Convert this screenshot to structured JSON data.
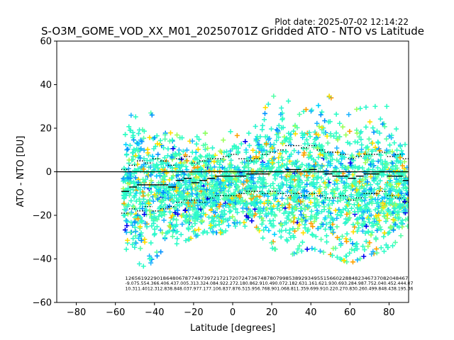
{
  "figure": {
    "plot_date": "Plot date: 2025-07-02 12:14:22"
  },
  "chart_data": {
    "type": "scatter",
    "title": "S-O3M_GOME_VOD_XX_M01_20250701Z Gridded ATO - NTO vs Latitude",
    "xlabel": "Latitude [degrees]",
    "ylabel": "ATO - NTO [DU]",
    "xlim": [
      -90,
      90
    ],
    "ylim": [
      -60,
      60
    ],
    "xticks": [
      -80,
      -60,
      -40,
      -20,
      0,
      20,
      40,
      60,
      80
    ],
    "yticks": [
      -60,
      -40,
      -20,
      0,
      20,
      40,
      60
    ],
    "grid": false,
    "reference_line_y": 0,
    "point_colors": [
      "#2efdc6",
      "#2ef5d0",
      "#54ffa8",
      "#0091ff",
      "#1fb4ff",
      "#9cff5a",
      "#ffdd00",
      "#fda000",
      "#0000ee",
      "#00d4ff",
      "#ffee00"
    ],
    "spread_envelope": [
      {
        "x": -55,
        "lo": -35,
        "hi": 22
      },
      {
        "x": -45,
        "lo": -45,
        "hi": 35
      },
      {
        "x": -35,
        "lo": -35,
        "hi": 22
      },
      {
        "x": -25,
        "lo": -32,
        "hi": 18
      },
      {
        "x": -15,
        "lo": -28,
        "hi": 18
      },
      {
        "x": -5,
        "lo": -28,
        "hi": 15
      },
      {
        "x": 0,
        "lo": -25,
        "hi": 22
      },
      {
        "x": 10,
        "lo": -25,
        "hi": 18
      },
      {
        "x": 20,
        "lo": -35,
        "hi": 35
      },
      {
        "x": 30,
        "lo": -38,
        "hi": 32
      },
      {
        "x": 40,
        "lo": -35,
        "hi": 30
      },
      {
        "x": 50,
        "lo": -38,
        "hi": 35
      },
      {
        "x": 60,
        "lo": -42,
        "hi": 28
      },
      {
        "x": 70,
        "lo": -38,
        "hi": 30
      },
      {
        "x": 80,
        "lo": -36,
        "hi": 30
      },
      {
        "x": 90,
        "lo": -25,
        "hi": 10
      }
    ],
    "bins": [
      {
        "lat": -55,
        "mean": -9,
        "sd_lo": -19,
        "sd_hi": 1
      },
      {
        "lat": -51,
        "mean": -7,
        "sd_lo": -17,
        "sd_hi": 3
      },
      {
        "lat": -47,
        "mean": -6,
        "sd_lo": -18,
        "sd_hi": 5
      },
      {
        "lat": -43,
        "mean": -6,
        "sd_lo": -16,
        "sd_hi": 4
      },
      {
        "lat": -39,
        "mean": -6,
        "sd_lo": -18,
        "sd_hi": 6
      },
      {
        "lat": -35,
        "mean": -6,
        "sd_lo": -17,
        "sd_hi": 5
      },
      {
        "lat": -31,
        "mean": -7,
        "sd_lo": -16,
        "sd_hi": 3
      },
      {
        "lat": -27,
        "mean": -4,
        "sd_lo": -14,
        "sd_hi": 6
      },
      {
        "lat": -23,
        "mean": -3,
        "sd_lo": -13,
        "sd_hi": 7
      },
      {
        "lat": -19,
        "mean": -5,
        "sd_lo": -13,
        "sd_hi": 4
      },
      {
        "lat": -15,
        "mean": -4,
        "sd_lo": -14,
        "sd_hi": 5
      },
      {
        "lat": -11,
        "mean": -3,
        "sd_lo": -12,
        "sd_hi": 6
      },
      {
        "lat": -7,
        "mean": -2,
        "sd_lo": -11,
        "sd_hi": 6
      },
      {
        "lat": -3,
        "mean": -2,
        "sd_lo": -11,
        "sd_hi": 7
      },
      {
        "lat": 1,
        "mean": -2,
        "sd_lo": -11,
        "sd_hi": 8
      },
      {
        "lat": 5,
        "mean": -2,
        "sd_lo": -10,
        "sd_hi": 6
      },
      {
        "lat": 9,
        "mean": -1,
        "sd_lo": -9,
        "sd_hi": 5
      },
      {
        "lat": 13,
        "mean": -1,
        "sd_lo": -9,
        "sd_hi": 6
      },
      {
        "lat": 17,
        "mean": -1,
        "sd_lo": -10,
        "sd_hi": 8
      },
      {
        "lat": 21,
        "mean": 0,
        "sd_lo": -9,
        "sd_hi": 9
      },
      {
        "lat": 25,
        "mean": 0,
        "sd_lo": -10,
        "sd_hi": 10
      },
      {
        "lat": 29,
        "mean": 1,
        "sd_lo": -11,
        "sd_hi": 12
      },
      {
        "lat": 33,
        "mean": 1,
        "sd_lo": -10,
        "sd_hi": 12
      },
      {
        "lat": 37,
        "mean": 0,
        "sd_lo": -11,
        "sd_hi": 11
      },
      {
        "lat": 41,
        "mean": 1,
        "sd_lo": -10,
        "sd_hi": 12
      },
      {
        "lat": 45,
        "mean": 0,
        "sd_lo": -11,
        "sd_hi": 10
      },
      {
        "lat": 49,
        "mean": -1,
        "sd_lo": -12,
        "sd_hi": 9
      },
      {
        "lat": 53,
        "mean": -2,
        "sd_lo": -12,
        "sd_hi": 9
      },
      {
        "lat": 57,
        "mean": -2,
        "sd_lo": -11,
        "sd_hi": 8
      },
      {
        "lat": 61,
        "mean": -3,
        "sd_lo": -13,
        "sd_hi": 6
      },
      {
        "lat": 65,
        "mean": -2,
        "sd_lo": -12,
        "sd_hi": 7
      },
      {
        "lat": 69,
        "mean": -1,
        "sd_lo": -10,
        "sd_hi": 8
      },
      {
        "lat": 73,
        "mean": -1,
        "sd_lo": -10,
        "sd_hi": 8
      },
      {
        "lat": 77,
        "mean": 0,
        "sd_lo": -9,
        "sd_hi": 9
      },
      {
        "lat": 81,
        "mean": -2,
        "sd_lo": -11,
        "sd_hi": 7
      },
      {
        "lat": 85,
        "mean": -2,
        "sd_lo": -12,
        "sd_hi": 8
      },
      {
        "lat": 89,
        "mean": -4,
        "sd_lo": -14,
        "sd_hi": 6
      }
    ],
    "stats_rows": [
      "126561922901864806787749739721721720724736748780799853892934955156602288482346737082048467",
      "-9.075.554.366.406.437.005.313.324.084.922.272.180.862.910.490.072.182.631.161.621.930.693.284.987.752.040.452.444.07",
      "10.311.4012.312.838.848.037.977.177.106.837.876.515.956.768.901.068.811.359.699.910.220.270.830.260.499.848.438.195.36"
    ]
  }
}
